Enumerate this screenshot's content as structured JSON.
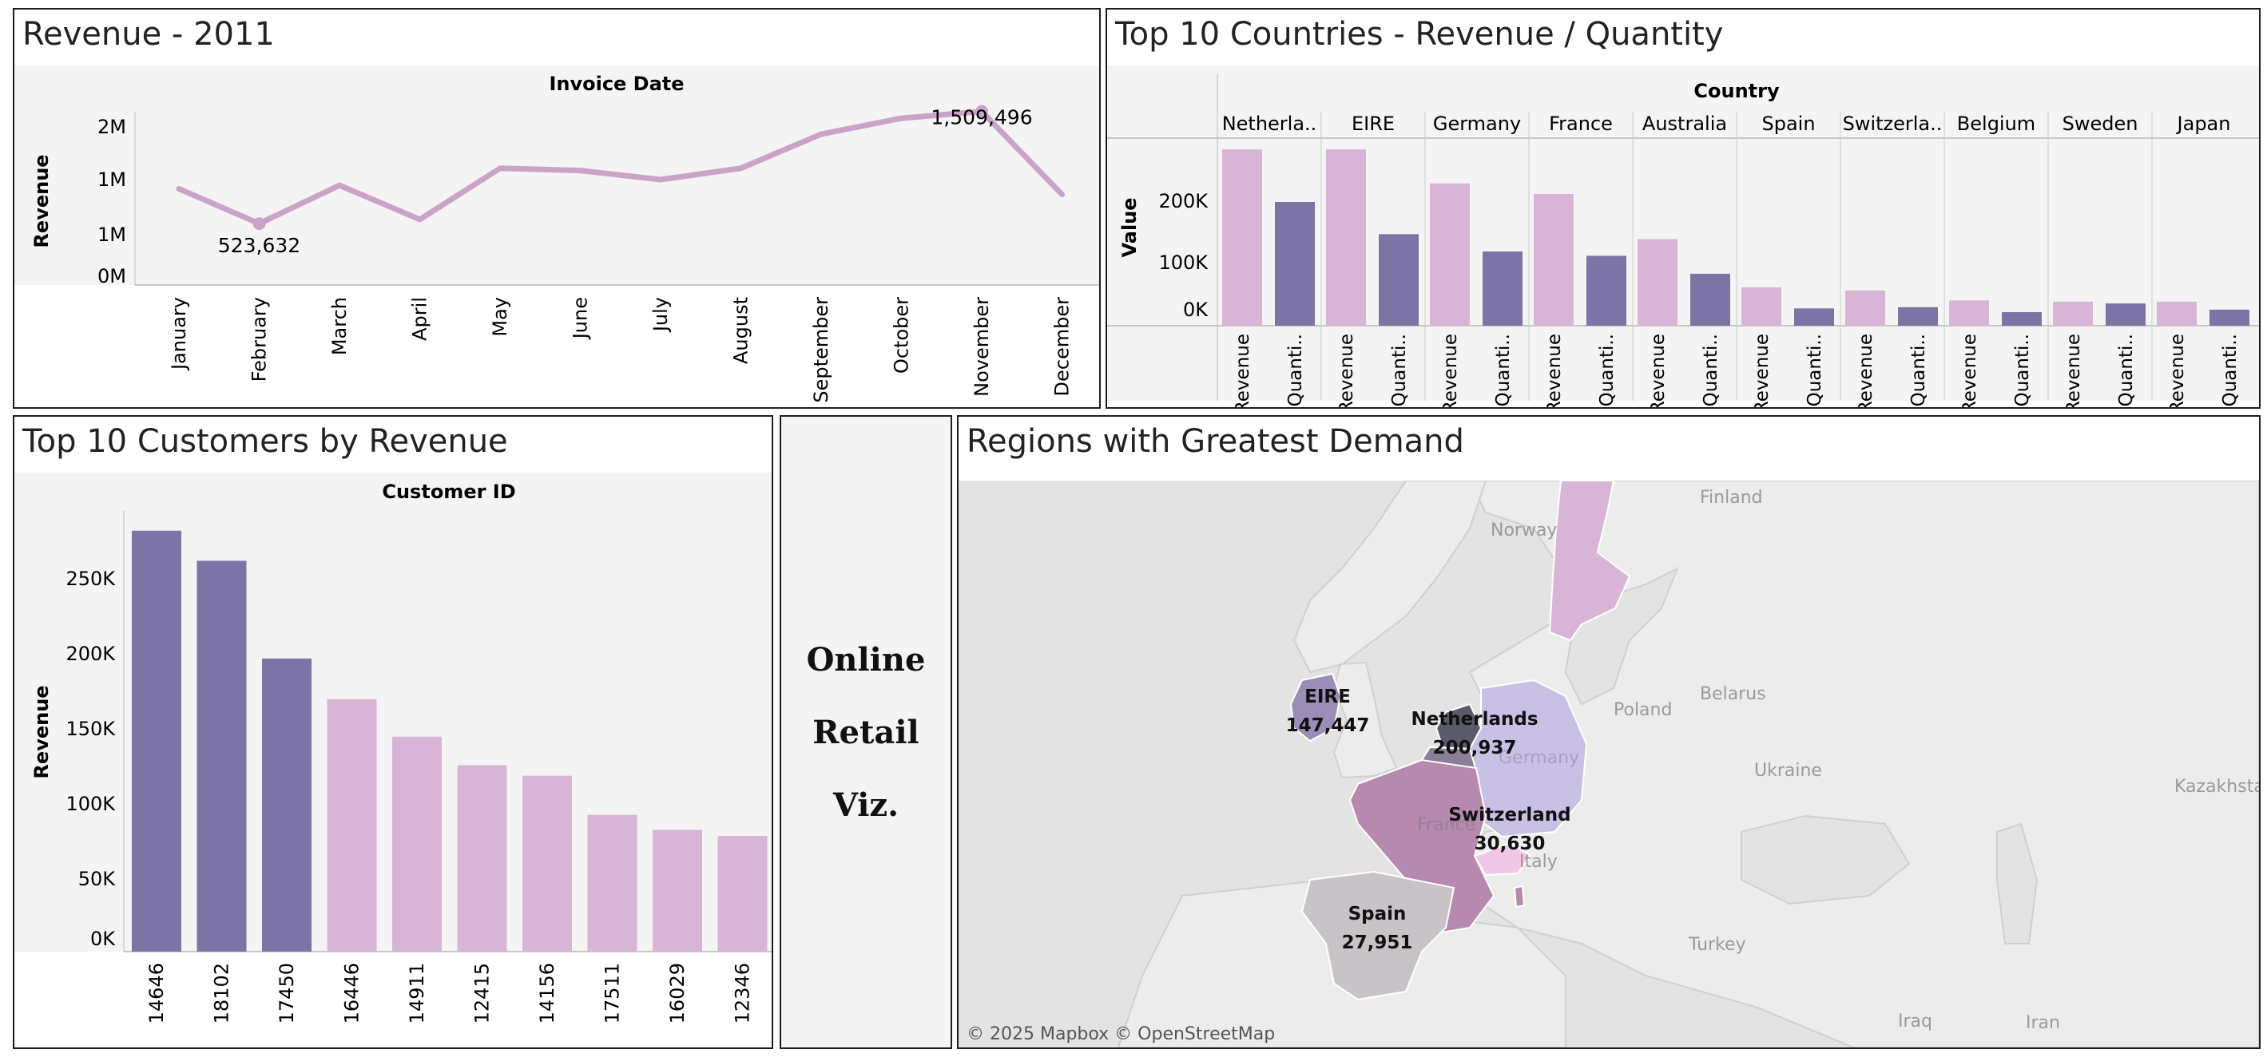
{
  "colors": {
    "light": "#d8b5d6",
    "dark": "#7d74a6",
    "line": "#cca3c8",
    "plotbg": "#f4f4f4",
    "mapbg": "#e6e6e6",
    "land": "#efefef"
  },
  "revenue_panel": {
    "title": "Revenue - 2011",
    "header": "Invoice Date",
    "ylabel": "Revenue",
    "yticks": [
      "2M",
      "1M",
      "1M",
      "0M"
    ],
    "annot_max": "1,509,496",
    "annot_min": "523,632"
  },
  "countries_panel": {
    "title": "Top 10 Countries - Revenue / Quantity",
    "header": "Country",
    "ylabel": "Value",
    "yticks": [
      "200K",
      "100K",
      "0K"
    ],
    "country_labels": [
      "Netherla..",
      "EIRE",
      "Germany",
      "France",
      "Australia",
      "Spain",
      "Switzerla..",
      "Belgium",
      "Sweden",
      "Japan"
    ],
    "measure_labels": [
      "Revenue",
      "Quanti.."
    ]
  },
  "customers_panel": {
    "title": "Top 10 Customers by Revenue",
    "header": "Customer ID",
    "ylabel": "Revenue",
    "yticks": [
      "250K",
      "200K",
      "150K",
      "100K",
      "50K",
      "0K"
    ]
  },
  "viz_panel": {
    "line1": "Online",
    "line2": "Retail",
    "line3": "Viz."
  },
  "map_panel": {
    "title": "Regions with Greatest Demand",
    "attribution": "© 2025 Mapbox  © OpenStreetMap",
    "places": [
      "Finland",
      "Norway",
      "Poland",
      "Belarus",
      "Ukraine",
      "Kazakhsta",
      "Italy",
      "Turkey",
      "Iraq",
      "Iran",
      "Germany",
      "France"
    ],
    "callouts": [
      {
        "name": "EIRE",
        "value": "147,447"
      },
      {
        "name": "Netherlands",
        "value": "200,937"
      },
      {
        "name": "Switzerland",
        "value": "30,630"
      },
      {
        "name": "Spain",
        "value": "27,951"
      }
    ]
  },
  "chart_data": [
    {
      "type": "line",
      "title": "Revenue - 2011",
      "xlabel": "Invoice Date",
      "ylabel": "Revenue",
      "x": [
        "January",
        "February",
        "March",
        "April",
        "May",
        "June",
        "July",
        "August",
        "September",
        "October",
        "November",
        "December"
      ],
      "values": [
        830000,
        523632,
        860000,
        560000,
        1010000,
        990000,
        910000,
        1010000,
        1310000,
        1450000,
        1509496,
        780000
      ],
      "annotations": [
        {
          "x": "November",
          "label": "1,509,496"
        },
        {
          "x": "February",
          "label": "523,632"
        }
      ]
    },
    {
      "type": "bar",
      "title": "Top 10 Countries - Revenue / Quantity",
      "xlabel": "Country",
      "ylabel": "Value",
      "categories": [
        "Netherla..",
        "EIRE",
        "Germany",
        "France",
        "Australia",
        "Spain",
        "Switzerla..",
        "Belgium",
        "Sweden",
        "Japan"
      ],
      "series": [
        {
          "name": "Revenue",
          "values": [
            285000,
            285000,
            230000,
            213000,
            140000,
            62000,
            57000,
            41000,
            39000,
            39000
          ]
        },
        {
          "name": "Quanti..",
          "values": [
            200000,
            148000,
            120000,
            113000,
            84000,
            28000,
            30000,
            22000,
            36000,
            26000
          ]
        }
      ]
    },
    {
      "type": "bar",
      "title": "Top 10 Customers by Revenue",
      "xlabel": "Customer ID",
      "ylabel": "Revenue",
      "categories": [
        "14646",
        "18102",
        "17450",
        "16446",
        "14911",
        "12415",
        "14156",
        "17511",
        "16029",
        "12346"
      ],
      "values": [
        280000,
        260000,
        195000,
        168000,
        143000,
        124000,
        117000,
        91000,
        81000,
        77000
      ],
      "highlighted": [
        true,
        true,
        true,
        false,
        false,
        false,
        false,
        false,
        false,
        false
      ]
    }
  ]
}
